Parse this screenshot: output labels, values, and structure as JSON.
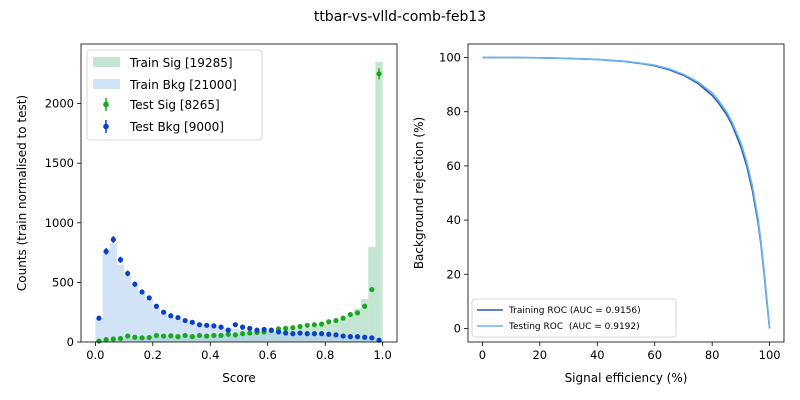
{
  "figure_title": "ttbar-vs-vlld-comb-feb13",
  "chart_data": [
    {
      "type": "bar",
      "subtype": "histogram-with-errorbars",
      "xlabel": "Score",
      "ylabel": "Counts (train normalised to test)",
      "xlim": [
        -0.05,
        1.05
      ],
      "ylim": [
        0,
        2500
      ],
      "xticks": [
        0.0,
        0.2,
        0.4,
        0.6,
        0.8,
        1.0
      ],
      "xtick_labels": [
        "0.0",
        "0.2",
        "0.4",
        "0.6",
        "0.8",
        "1.0"
      ],
      "yticks": [
        0,
        500,
        1000,
        1500,
        2000
      ],
      "ytick_labels": [
        "0",
        "500",
        "1000",
        "1500",
        "2000"
      ],
      "legend_position": "top-left",
      "bin_width": 0.025,
      "x": [
        0.0125,
        0.0375,
        0.0625,
        0.0875,
        0.1125,
        0.1375,
        0.1625,
        0.1875,
        0.2125,
        0.2375,
        0.2625,
        0.2875,
        0.3125,
        0.3375,
        0.3625,
        0.3875,
        0.4125,
        0.4375,
        0.4625,
        0.4875,
        0.5125,
        0.5375,
        0.5625,
        0.5875,
        0.6125,
        0.6375,
        0.6625,
        0.6875,
        0.7125,
        0.7375,
        0.7625,
        0.7875,
        0.8125,
        0.8375,
        0.8625,
        0.8875,
        0.9125,
        0.9375,
        0.9625,
        0.9875
      ],
      "series": [
        {
          "name": "Train Sig [19285]",
          "style": "filled-step",
          "color": "#2ca25f",
          "values": [
            5,
            12,
            18,
            22,
            35,
            38,
            38,
            40,
            45,
            48,
            50,
            52,
            52,
            55,
            55,
            58,
            60,
            62,
            65,
            68,
            72,
            78,
            82,
            88,
            95,
            100,
            105,
            110,
            115,
            120,
            130,
            140,
            150,
            170,
            190,
            220,
            280,
            360,
            800,
            2350
          ]
        },
        {
          "name": "Train Bkg [21000]",
          "style": "filled-step",
          "color": "#a6c8f0",
          "values": [
            200,
            770,
            830,
            650,
            560,
            470,
            410,
            360,
            290,
            240,
            215,
            200,
            180,
            165,
            155,
            145,
            135,
            125,
            118,
            112,
            105,
            100,
            95,
            90,
            85,
            82,
            78,
            75,
            72,
            68,
            65,
            62,
            58,
            55,
            50,
            47,
            44,
            40,
            35,
            25
          ]
        },
        {
          "name": "Test Sig [8265]",
          "style": "errorbar",
          "color": "#18a81e",
          "values": [
            8,
            20,
            25,
            30,
            50,
            40,
            35,
            38,
            55,
            50,
            52,
            45,
            55,
            45,
            55,
            50,
            55,
            55,
            65,
            60,
            70,
            75,
            80,
            85,
            95,
            110,
            115,
            120,
            130,
            140,
            145,
            150,
            170,
            180,
            200,
            230,
            245,
            300,
            440,
            2250
          ],
          "errors": [
            3,
            5,
            5,
            6,
            7,
            6,
            6,
            6,
            7,
            7,
            7,
            7,
            7,
            7,
            7,
            7,
            7,
            7,
            8,
            8,
            8,
            9,
            9,
            9,
            10,
            10,
            11,
            11,
            11,
            12,
            12,
            12,
            13,
            13,
            14,
            15,
            16,
            17,
            21,
            47
          ]
        },
        {
          "name": "Test Bkg [9000]",
          "style": "errorbar",
          "color": "#0a3fcc",
          "values": [
            200,
            760,
            860,
            690,
            575,
            485,
            420,
            370,
            300,
            250,
            220,
            205,
            180,
            165,
            145,
            140,
            135,
            125,
            100,
            145,
            125,
            115,
            100,
            105,
            100,
            85,
            75,
            70,
            75,
            70,
            70,
            70,
            65,
            60,
            50,
            45,
            45,
            40,
            35,
            15
          ],
          "errors": [
            14,
            28,
            29,
            26,
            24,
            22,
            20,
            19,
            17,
            16,
            15,
            14,
            13,
            13,
            12,
            12,
            12,
            11,
            10,
            12,
            11,
            11,
            10,
            10,
            10,
            9,
            9,
            8,
            9,
            8,
            8,
            8,
            8,
            8,
            7,
            7,
            7,
            6,
            6,
            4
          ]
        }
      ]
    },
    {
      "type": "line",
      "xlabel": "Signal efficiency (%)",
      "ylabel": "Background rejection (%)",
      "xlim": [
        -5,
        105
      ],
      "ylim": [
        -5,
        105
      ],
      "xticks": [
        0,
        20,
        40,
        60,
        80,
        100
      ],
      "xtick_labels": [
        "0",
        "20",
        "40",
        "60",
        "80",
        "100"
      ],
      "yticks": [
        0,
        20,
        40,
        60,
        80,
        100
      ],
      "ytick_labels": [
        "0",
        "20",
        "40",
        "60",
        "80",
        "100"
      ],
      "legend_position": "bottom-left",
      "series": [
        {
          "name": "Training ROC (AUC = 0.9156)",
          "color": "#2c5aa8",
          "x": [
            0,
            10,
            20,
            30,
            40,
            50,
            55,
            60,
            65,
            70,
            75,
            80,
            82,
            85,
            87,
            90,
            92,
            94,
            96,
            97,
            98,
            99,
            99.5,
            100
          ],
          "y": [
            100,
            100,
            99.9,
            99.7,
            99.3,
            98.5,
            97.8,
            97,
            95.5,
            93.5,
            90.5,
            86,
            83.5,
            79,
            75,
            67,
            60,
            51,
            39,
            31,
            21,
            10,
            5,
            0
          ]
        },
        {
          "name": "Testing ROC  (AUC = 0.9192)",
          "color": "#6ab4f0",
          "x": [
            0,
            10,
            20,
            30,
            40,
            50,
            55,
            60,
            65,
            70,
            75,
            80,
            82,
            85,
            87,
            90,
            92,
            94,
            96,
            97,
            98,
            99,
            99.5,
            100
          ],
          "y": [
            100,
            100,
            99.9,
            99.7,
            99.3,
            98.6,
            97.9,
            97.2,
            95.8,
            93.8,
            91,
            87,
            84.5,
            80,
            76,
            68.5,
            61.5,
            52.5,
            40.5,
            32,
            22,
            11,
            5.5,
            0
          ]
        }
      ]
    }
  ]
}
